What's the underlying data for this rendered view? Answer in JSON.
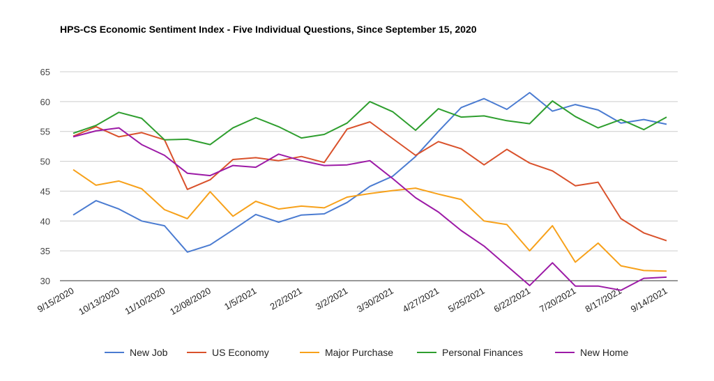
{
  "chart_data": {
    "type": "line",
    "title": "HPS-CS Economic Sentiment Index - Five Individual Questions, Since September 15, 2020",
    "xlabel": "",
    "ylabel": "",
    "ylim": [
      27,
      65
    ],
    "yticks": [
      30,
      35,
      40,
      45,
      50,
      55,
      60,
      65
    ],
    "grid": true,
    "legend_position": "bottom",
    "x_tick_labels": [
      "9/15/2020",
      "10/13/2020",
      "11/10/2020",
      "12/08/2020",
      "1/5/2021",
      "2/2/2021",
      "3/2/2021",
      "3/30/2021",
      "4/27/2021",
      "5/25/2021",
      "6/22/2021",
      "7/20/2021",
      "8/17/2021",
      "9/14/2021"
    ],
    "x": [
      "9/15/2020",
      "9/29/2020",
      "10/13/2020",
      "10/27/2020",
      "11/10/2020",
      "11/24/2020",
      "12/08/2020",
      "12/22/2020",
      "1/5/2021",
      "1/19/2021",
      "2/2/2021",
      "2/16/2021",
      "3/2/2021",
      "3/16/2021",
      "3/30/2021",
      "4/13/2021",
      "4/27/2021",
      "5/11/2021",
      "5/25/2021",
      "6/8/2021",
      "6/22/2021",
      "7/6/2021",
      "7/20/2021",
      "8/3/2021",
      "8/17/2021",
      "8/31/2021",
      "9/14/2021"
    ],
    "series": [
      {
        "name": "New Job",
        "color": "#4a7bd1",
        "values": [
          41.0,
          43.4,
          42.0,
          40.0,
          39.2,
          34.8,
          36.0,
          38.5,
          41.1,
          39.8,
          41.0,
          41.2,
          43.1,
          45.8,
          47.5,
          50.8,
          55.0,
          59.0,
          60.5,
          58.7,
          61.5,
          58.4,
          59.5,
          58.6,
          56.4,
          57.0,
          56.2
        ]
      },
      {
        "name": "US Economy",
        "color": "#d9512b",
        "values": [
          54.2,
          55.8,
          54.1,
          54.8,
          53.6,
          45.3,
          46.9,
          50.3,
          50.6,
          50.1,
          50.8,
          49.8,
          55.4,
          56.6,
          53.8,
          51.0,
          53.3,
          52.1,
          49.4,
          52.0,
          49.7,
          48.4,
          45.9,
          46.5,
          40.4,
          38.0,
          36.7
        ]
      },
      {
        "name": "Major Purchase",
        "color": "#f7a11a",
        "values": [
          48.6,
          46.0,
          46.7,
          45.4,
          41.9,
          40.4,
          44.9,
          40.8,
          43.3,
          42.0,
          42.5,
          42.2,
          44.0,
          44.6,
          45.1,
          45.5,
          44.5,
          43.6,
          40.0,
          39.4,
          35.0,
          39.2,
          33.1,
          36.3,
          32.5,
          31.7,
          31.6
        ]
      },
      {
        "name": "Personal Finances",
        "color": "#2e9e2e",
        "values": [
          54.7,
          56.0,
          58.2,
          57.2,
          53.6,
          53.7,
          52.8,
          55.6,
          57.3,
          55.8,
          53.9,
          54.5,
          56.4,
          60.0,
          58.3,
          55.2,
          58.8,
          57.4,
          57.6,
          56.8,
          56.3,
          60.1,
          57.5,
          55.6,
          57.0,
          55.3,
          57.4
        ]
      },
      {
        "name": "New Home",
        "color": "#9c1aa6",
        "values": [
          54.1,
          55.1,
          55.6,
          52.8,
          51.0,
          48.0,
          47.6,
          49.3,
          49.0,
          51.2,
          50.1,
          49.3,
          49.4,
          50.1,
          47.1,
          43.9,
          41.5,
          38.4,
          35.8,
          32.5,
          29.2,
          33.0,
          29.1,
          29.1,
          28.4,
          30.4,
          30.6
        ]
      }
    ]
  }
}
